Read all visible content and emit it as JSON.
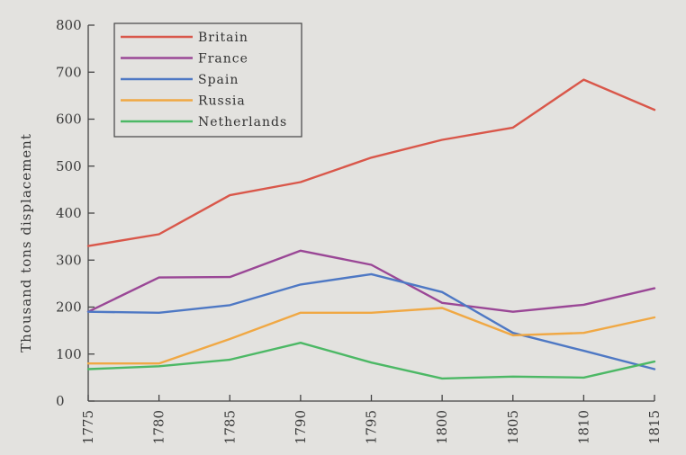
{
  "chart_data": {
    "type": "line",
    "ylabel": "Thousand tons displacement",
    "ylim": [
      0,
      800
    ],
    "yticks": [
      0,
      100,
      200,
      300,
      400,
      500,
      600,
      700,
      800
    ],
    "x": [
      1775,
      1780,
      1785,
      1790,
      1795,
      1800,
      1805,
      1810,
      1815
    ],
    "legend_position": "top-left",
    "grid": false,
    "series": [
      {
        "name": "Britain",
        "color": "#d9574a",
        "values": [
          330,
          355,
          438,
          466,
          518,
          556,
          582,
          684,
          620
        ]
      },
      {
        "name": "France",
        "color": "#9a4796",
        "values": [
          190,
          263,
          264,
          320,
          290,
          209,
          190,
          205,
          240
        ]
      },
      {
        "name": "Spain",
        "color": "#4e78c4",
        "values": [
          190,
          188,
          204,
          248,
          270,
          232,
          145,
          107,
          68
        ]
      },
      {
        "name": "Russia",
        "color": "#f0a844",
        "values": [
          80,
          80,
          132,
          188,
          188,
          198,
          140,
          145,
          178
        ]
      },
      {
        "name": "Netherlands",
        "color": "#4cb865",
        "values": [
          68,
          74,
          88,
          124,
          82,
          48,
          52,
          50,
          84
        ]
      }
    ]
  }
}
